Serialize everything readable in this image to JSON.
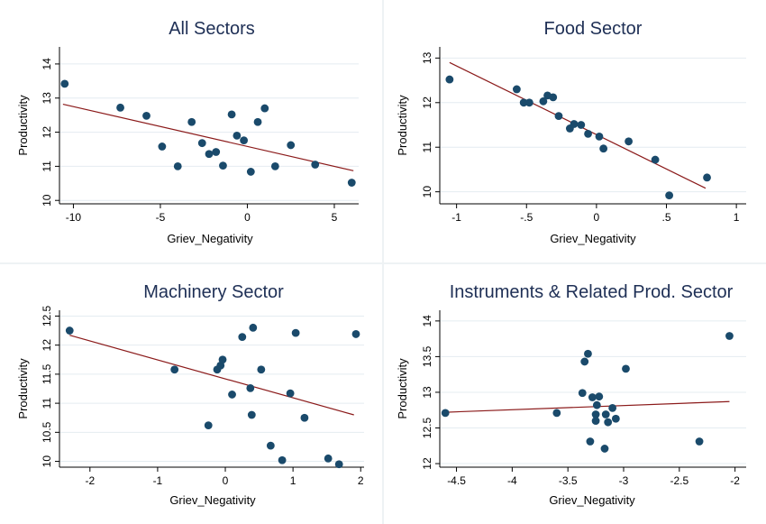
{
  "chart_data": [
    {
      "type": "scatter",
      "title": "All Sectors",
      "xlabel": "Griev_Negativity",
      "ylabel": "Productivity",
      "xlim": [
        -10.8,
        6.4
      ],
      "ylim": [
        9.9,
        14.5
      ],
      "xticks": [
        -10,
        -5,
        0,
        5
      ],
      "yticks": [
        10,
        11,
        12,
        13,
        14
      ],
      "grid": true,
      "fit_line": {
        "x": [
          -10.6,
          6.1
        ],
        "y": [
          12.82,
          10.87
        ]
      },
      "points": [
        {
          "x": -10.5,
          "y": 13.42
        },
        {
          "x": -7.3,
          "y": 12.72
        },
        {
          "x": -5.8,
          "y": 12.48
        },
        {
          "x": -4.9,
          "y": 11.58
        },
        {
          "x": -4.0,
          "y": 11.0
        },
        {
          "x": -3.2,
          "y": 12.3
        },
        {
          "x": -2.6,
          "y": 11.68
        },
        {
          "x": -2.2,
          "y": 11.36
        },
        {
          "x": -1.8,
          "y": 11.42
        },
        {
          "x": -1.4,
          "y": 11.02
        },
        {
          "x": -0.9,
          "y": 12.52
        },
        {
          "x": -0.6,
          "y": 11.9
        },
        {
          "x": -0.2,
          "y": 11.76
        },
        {
          "x": 0.2,
          "y": 10.84
        },
        {
          "x": 0.6,
          "y": 12.3
        },
        {
          "x": 1.0,
          "y": 12.7
        },
        {
          "x": 1.6,
          "y": 11.0
        },
        {
          "x": 2.5,
          "y": 11.62
        },
        {
          "x": 3.9,
          "y": 11.05
        },
        {
          "x": 6.0,
          "y": 10.52
        }
      ]
    },
    {
      "type": "scatter",
      "title": "Food Sector",
      "xlabel": "Griev_Negativity",
      "ylabel": "Productivity",
      "xlim": [
        -1.12,
        1.07
      ],
      "ylim": [
        9.73,
        13.25
      ],
      "xticks": [
        -1,
        -0.5,
        0,
        0.5,
        1
      ],
      "xtick_labels": [
        "-1",
        "-.5",
        "0",
        ".5",
        "1"
      ],
      "yticks": [
        10,
        11,
        12,
        13
      ],
      "grid": true,
      "fit_line": {
        "x": [
          -1.05,
          0.78
        ],
        "y": [
          12.9,
          10.08
        ]
      },
      "points": [
        {
          "x": -1.05,
          "y": 12.52
        },
        {
          "x": -0.57,
          "y": 12.3
        },
        {
          "x": -0.52,
          "y": 12.0
        },
        {
          "x": -0.48,
          "y": 12.0
        },
        {
          "x": -0.38,
          "y": 12.03
        },
        {
          "x": -0.35,
          "y": 12.16
        },
        {
          "x": -0.31,
          "y": 12.12
        },
        {
          "x": -0.27,
          "y": 11.7
        },
        {
          "x": -0.19,
          "y": 11.42
        },
        {
          "x": -0.16,
          "y": 11.52
        },
        {
          "x": -0.11,
          "y": 11.5
        },
        {
          "x": -0.06,
          "y": 11.3
        },
        {
          "x": 0.02,
          "y": 11.24
        },
        {
          "x": 0.05,
          "y": 10.97
        },
        {
          "x": 0.23,
          "y": 11.13
        },
        {
          "x": 0.42,
          "y": 10.72
        },
        {
          "x": 0.52,
          "y": 9.92
        },
        {
          "x": 0.79,
          "y": 10.32
        }
      ]
    },
    {
      "type": "scatter",
      "title": "Machinery Sector",
      "xlabel": "Griev_Negativity",
      "ylabel": "Productivity",
      "xlim": [
        -2.45,
        2.05
      ],
      "ylim": [
        9.9,
        12.6
      ],
      "xticks": [
        -2,
        -1,
        0,
        1,
        2
      ],
      "yticks": [
        10,
        10.5,
        11,
        11.5,
        12,
        12.5
      ],
      "ytick_labels": [
        "10",
        "10.5",
        "11",
        "11.5",
        "12",
        "12.5"
      ],
      "grid": true,
      "fit_line": {
        "x": [
          -2.3,
          1.9
        ],
        "y": [
          12.17,
          10.8
        ]
      },
      "points": [
        {
          "x": -2.3,
          "y": 12.25
        },
        {
          "x": -0.75,
          "y": 11.58
        },
        {
          "x": -0.25,
          "y": 10.62
        },
        {
          "x": -0.12,
          "y": 11.58
        },
        {
          "x": -0.07,
          "y": 11.65
        },
        {
          "x": -0.04,
          "y": 11.75
        },
        {
          "x": 0.1,
          "y": 11.15
        },
        {
          "x": 0.25,
          "y": 12.14
        },
        {
          "x": 0.37,
          "y": 11.26
        },
        {
          "x": 0.39,
          "y": 10.8
        },
        {
          "x": 0.41,
          "y": 12.3
        },
        {
          "x": 0.53,
          "y": 11.58
        },
        {
          "x": 0.67,
          "y": 10.27
        },
        {
          "x": 0.84,
          "y": 10.02
        },
        {
          "x": 0.96,
          "y": 11.17
        },
        {
          "x": 1.04,
          "y": 12.21
        },
        {
          "x": 1.17,
          "y": 10.75
        },
        {
          "x": 1.52,
          "y": 10.05
        },
        {
          "x": 1.68,
          "y": 9.95
        },
        {
          "x": 1.93,
          "y": 12.19
        }
      ]
    },
    {
      "type": "scatter",
      "title": "Instruments & Related Prod. Sector",
      "xlabel": "Griev_Negativity",
      "ylabel": "Productivity",
      "xlim": [
        -4.65,
        -1.9
      ],
      "ylim": [
        11.95,
        14.15
      ],
      "xticks": [
        -4.5,
        -4,
        -3.5,
        -3,
        -2.5,
        -2
      ],
      "xtick_labels": [
        "-4.5",
        "-4",
        "-3.5",
        "-3",
        "-2.5",
        "-2"
      ],
      "yticks": [
        12,
        12.5,
        13,
        13.5,
        14
      ],
      "ytick_labels": [
        "12",
        "12.5",
        "13",
        "13.5",
        "14"
      ],
      "grid": true,
      "fit_line": {
        "x": [
          -4.6,
          -2.05
        ],
        "y": [
          12.72,
          12.87
        ]
      },
      "points": [
        {
          "x": -4.6,
          "y": 12.71
        },
        {
          "x": -3.6,
          "y": 12.71
        },
        {
          "x": -3.37,
          "y": 12.99
        },
        {
          "x": -3.35,
          "y": 13.43
        },
        {
          "x": -3.32,
          "y": 13.54
        },
        {
          "x": -3.3,
          "y": 12.31
        },
        {
          "x": -3.28,
          "y": 12.93
        },
        {
          "x": -3.25,
          "y": 12.69
        },
        {
          "x": -3.25,
          "y": 12.6
        },
        {
          "x": -3.24,
          "y": 12.82
        },
        {
          "x": -3.22,
          "y": 12.94
        },
        {
          "x": -3.17,
          "y": 12.21
        },
        {
          "x": -3.16,
          "y": 12.69
        },
        {
          "x": -3.14,
          "y": 12.58
        },
        {
          "x": -3.1,
          "y": 12.78
        },
        {
          "x": -3.07,
          "y": 12.63
        },
        {
          "x": -2.98,
          "y": 13.33
        },
        {
          "x": -2.32,
          "y": 12.31
        },
        {
          "x": -2.05,
          "y": 13.79
        }
      ]
    }
  ]
}
